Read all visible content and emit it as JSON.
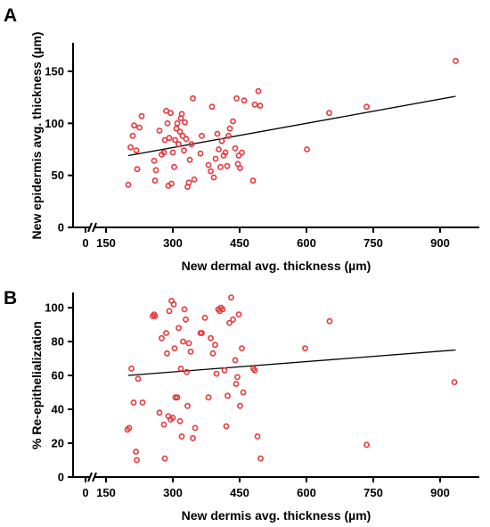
{
  "chart_data": [
    {
      "panel_label": "A",
      "type": "scatter",
      "xlabel": "New dermal avg. thickness (µm)",
      "ylabel": "New epidermis avg. thickness (µm)",
      "x_ticks": [
        0,
        150,
        300,
        450,
        600,
        750,
        900
      ],
      "y_ticks": [
        0,
        50,
        100,
        150
      ],
      "xlim": [
        0,
        1000
      ],
      "ylim": [
        0,
        170
      ],
      "x_axis_break": [
        10,
        140
      ],
      "point_color": "#e8363b",
      "trendline": {
        "x": [
          200,
          935
        ],
        "y": [
          69,
          126
        ]
      },
      "points": [
        {
          "x": 200,
          "y": 41
        },
        {
          "x": 205,
          "y": 77
        },
        {
          "x": 210,
          "y": 88
        },
        {
          "x": 213,
          "y": 98
        },
        {
          "x": 218,
          "y": 74
        },
        {
          "x": 220,
          "y": 56
        },
        {
          "x": 225,
          "y": 96
        },
        {
          "x": 230,
          "y": 107
        },
        {
          "x": 258,
          "y": 64
        },
        {
          "x": 260,
          "y": 45
        },
        {
          "x": 262,
          "y": 55
        },
        {
          "x": 270,
          "y": 93
        },
        {
          "x": 275,
          "y": 70
        },
        {
          "x": 280,
          "y": 72
        },
        {
          "x": 282,
          "y": 84
        },
        {
          "x": 285,
          "y": 112
        },
        {
          "x": 288,
          "y": 100
        },
        {
          "x": 290,
          "y": 40
        },
        {
          "x": 292,
          "y": 86
        },
        {
          "x": 295,
          "y": 110
        },
        {
          "x": 297,
          "y": 42
        },
        {
          "x": 300,
          "y": 72
        },
        {
          "x": 303,
          "y": 58
        },
        {
          "x": 305,
          "y": 84
        },
        {
          "x": 308,
          "y": 95
        },
        {
          "x": 310,
          "y": 100
        },
        {
          "x": 313,
          "y": 80
        },
        {
          "x": 316,
          "y": 92
        },
        {
          "x": 318,
          "y": 105
        },
        {
          "x": 320,
          "y": 109
        },
        {
          "x": 322,
          "y": 88
        },
        {
          "x": 325,
          "y": 74
        },
        {
          "x": 327,
          "y": 101
        },
        {
          "x": 330,
          "y": 85
        },
        {
          "x": 333,
          "y": 39
        },
        {
          "x": 336,
          "y": 43
        },
        {
          "x": 338,
          "y": 65
        },
        {
          "x": 342,
          "y": 80
        },
        {
          "x": 345,
          "y": 124
        },
        {
          "x": 348,
          "y": 46
        },
        {
          "x": 362,
          "y": 71
        },
        {
          "x": 365,
          "y": 88
        },
        {
          "x": 380,
          "y": 60
        },
        {
          "x": 385,
          "y": 54
        },
        {
          "x": 388,
          "y": 116
        },
        {
          "x": 392,
          "y": 48
        },
        {
          "x": 396,
          "y": 66
        },
        {
          "x": 400,
          "y": 90
        },
        {
          "x": 403,
          "y": 75
        },
        {
          "x": 407,
          "y": 58
        },
        {
          "x": 410,
          "y": 83
        },
        {
          "x": 414,
          "y": 69
        },
        {
          "x": 418,
          "y": 72
        },
        {
          "x": 422,
          "y": 59
        },
        {
          "x": 425,
          "y": 88
        },
        {
          "x": 428,
          "y": 95
        },
        {
          "x": 435,
          "y": 102
        },
        {
          "x": 440,
          "y": 76
        },
        {
          "x": 443,
          "y": 124
        },
        {
          "x": 446,
          "y": 61
        },
        {
          "x": 448,
          "y": 69
        },
        {
          "x": 451,
          "y": 57
        },
        {
          "x": 455,
          "y": 72
        },
        {
          "x": 460,
          "y": 122
        },
        {
          "x": 480,
          "y": 45
        },
        {
          "x": 484,
          "y": 118
        },
        {
          "x": 492,
          "y": 131
        },
        {
          "x": 496,
          "y": 117
        },
        {
          "x": 601,
          "y": 75
        },
        {
          "x": 651,
          "y": 110
        },
        {
          "x": 735,
          "y": 116
        },
        {
          "x": 935,
          "y": 160
        }
      ]
    },
    {
      "panel_label": "B",
      "type": "scatter",
      "xlabel": "New dermis avg. thickness (µm)",
      "ylabel": "% Re-epithelialization",
      "x_ticks": [
        0,
        150,
        300,
        450,
        600,
        750,
        900
      ],
      "y_ticks": [
        0,
        20,
        40,
        60,
        80,
        100
      ],
      "xlim": [
        0,
        1000
      ],
      "ylim": [
        0,
        110
      ],
      "x_axis_break": [
        10,
        140
      ],
      "point_color": "#e8363b",
      "trendline": {
        "x": [
          200,
          935
        ],
        "y": [
          60,
          75
        ]
      },
      "points": [
        {
          "x": 198,
          "y": 28
        },
        {
          "x": 202,
          "y": 29
        },
        {
          "x": 207,
          "y": 64
        },
        {
          "x": 212,
          "y": 44
        },
        {
          "x": 217,
          "y": 15
        },
        {
          "x": 219,
          "y": 10
        },
        {
          "x": 222,
          "y": 58
        },
        {
          "x": 232,
          "y": 44
        },
        {
          "x": 255,
          "y": 95
        },
        {
          "x": 258,
          "y": 96
        },
        {
          "x": 260,
          "y": 95
        },
        {
          "x": 270,
          "y": 38
        },
        {
          "x": 275,
          "y": 82
        },
        {
          "x": 280,
          "y": 31
        },
        {
          "x": 282,
          "y": 11
        },
        {
          "x": 285,
          "y": 85
        },
        {
          "x": 287,
          "y": 73
        },
        {
          "x": 290,
          "y": 36
        },
        {
          "x": 292,
          "y": 98
        },
        {
          "x": 295,
          "y": 34
        },
        {
          "x": 297,
          "y": 104
        },
        {
          "x": 300,
          "y": 35
        },
        {
          "x": 302,
          "y": 102
        },
        {
          "x": 304,
          "y": 76
        },
        {
          "x": 306,
          "y": 47
        },
        {
          "x": 310,
          "y": 47
        },
        {
          "x": 313,
          "y": 88
        },
        {
          "x": 316,
          "y": 33
        },
        {
          "x": 318,
          "y": 64
        },
        {
          "x": 320,
          "y": 24
        },
        {
          "x": 323,
          "y": 80
        },
        {
          "x": 326,
          "y": 99
        },
        {
          "x": 329,
          "y": 93
        },
        {
          "x": 331,
          "y": 62
        },
        {
          "x": 333,
          "y": 42
        },
        {
          "x": 336,
          "y": 79
        },
        {
          "x": 340,
          "y": 74
        },
        {
          "x": 345,
          "y": 23
        },
        {
          "x": 350,
          "y": 29
        },
        {
          "x": 362,
          "y": 85
        },
        {
          "x": 365,
          "y": 85
        },
        {
          "x": 372,
          "y": 94
        },
        {
          "x": 380,
          "y": 47
        },
        {
          "x": 385,
          "y": 82
        },
        {
          "x": 390,
          "y": 73
        },
        {
          "x": 395,
          "y": 78
        },
        {
          "x": 398,
          "y": 61
        },
        {
          "x": 402,
          "y": 99
        },
        {
          "x": 405,
          "y": 98
        },
        {
          "x": 408,
          "y": 100
        },
        {
          "x": 412,
          "y": 99
        },
        {
          "x": 416,
          "y": 63
        },
        {
          "x": 420,
          "y": 30
        },
        {
          "x": 423,
          "y": 48
        },
        {
          "x": 427,
          "y": 91
        },
        {
          "x": 431,
          "y": 106
        },
        {
          "x": 435,
          "y": 93
        },
        {
          "x": 440,
          "y": 69
        },
        {
          "x": 442,
          "y": 55
        },
        {
          "x": 445,
          "y": 59
        },
        {
          "x": 448,
          "y": 96
        },
        {
          "x": 451,
          "y": 42
        },
        {
          "x": 455,
          "y": 76
        },
        {
          "x": 458,
          "y": 50
        },
        {
          "x": 481,
          "y": 64
        },
        {
          "x": 484,
          "y": 63
        },
        {
          "x": 490,
          "y": 24
        },
        {
          "x": 497,
          "y": 11
        },
        {
          "x": 597,
          "y": 76
        },
        {
          "x": 652,
          "y": 92
        },
        {
          "x": 735,
          "y": 19
        },
        {
          "x": 932,
          "y": 56
        }
      ]
    }
  ]
}
